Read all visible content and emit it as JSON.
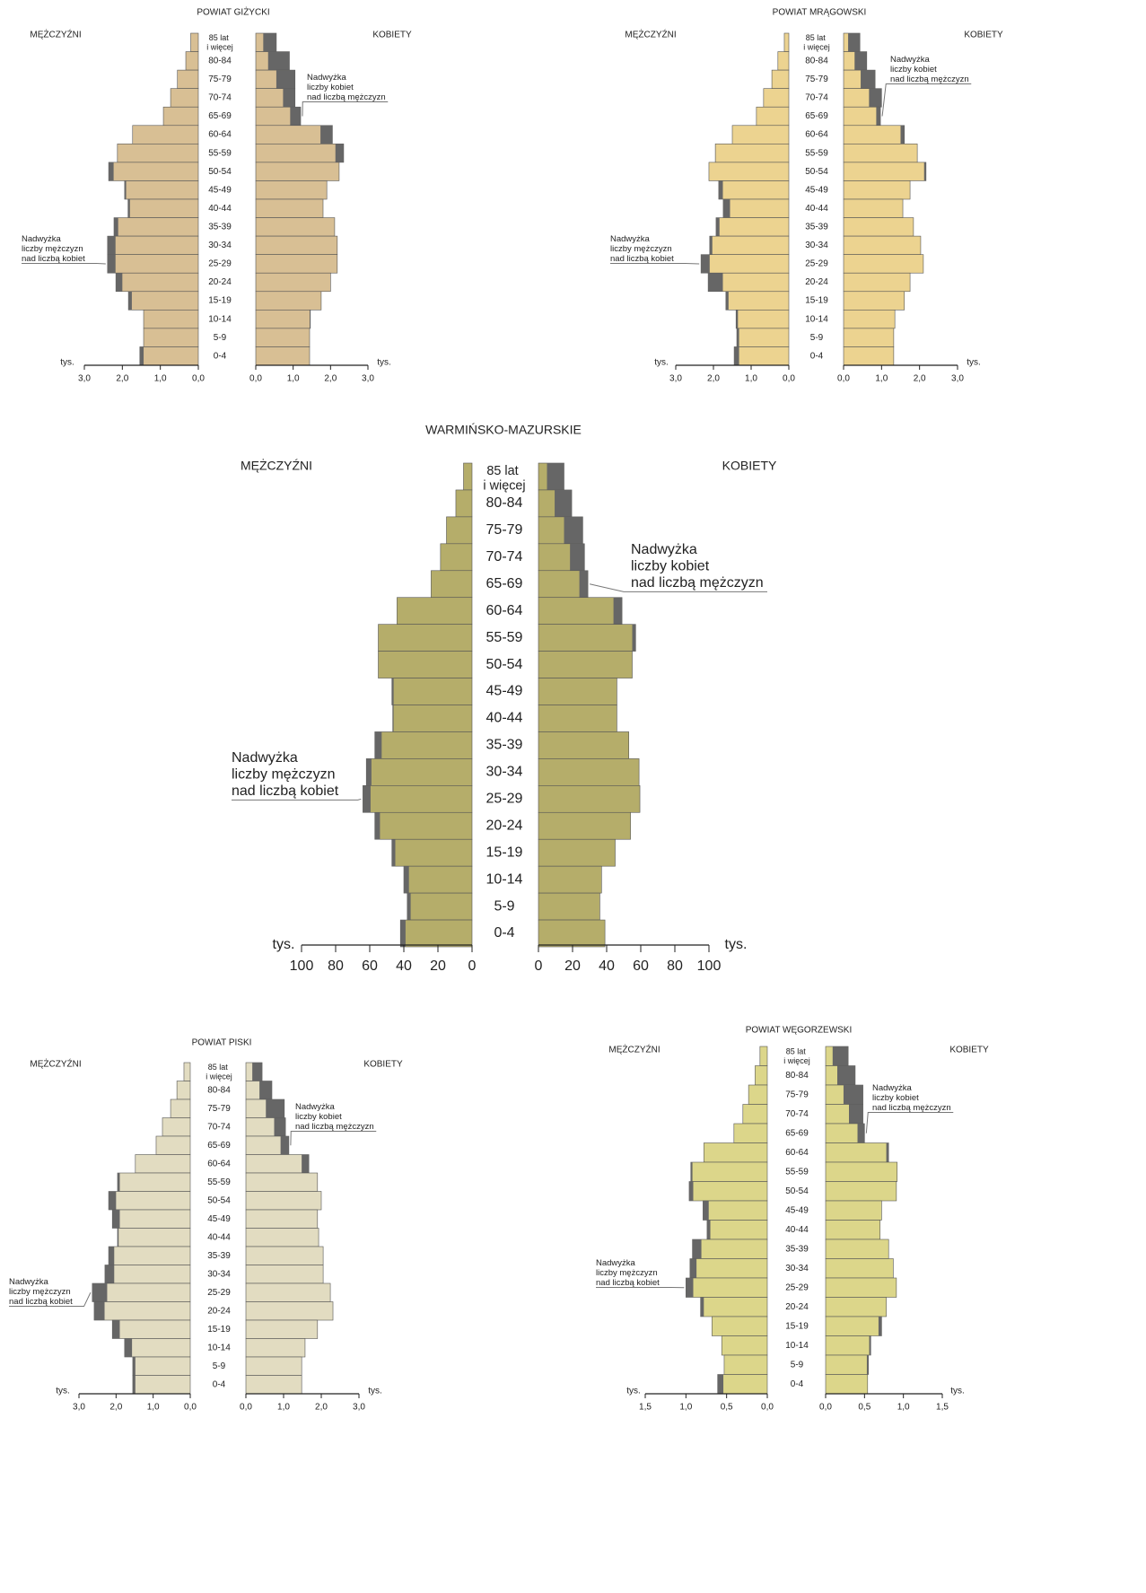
{
  "chart_data": [
    {
      "type": "pyramid",
      "title": "POWIAT GIŻYCKI",
      "x_label": "tys.",
      "categories": [
        "85 lat i więcej",
        "80-84",
        "75-79",
        "70-74",
        "65-69",
        "60-64",
        "55-59",
        "50-54",
        "45-49",
        "40-44",
        "35-39",
        "30-34",
        "25-29",
        "20-24",
        "15-19",
        "10-14",
        "5-9",
        "0-4"
      ],
      "series": [
        {
          "name": "MĘŻCZYŹNI",
          "color": "#d8bf94",
          "values": [
            0.2,
            0.33,
            0.55,
            0.73,
            0.92,
            1.73,
            2.13,
            2.36,
            1.94,
            1.85,
            2.22,
            2.39,
            2.39,
            2.17,
            1.84,
            1.44,
            1.44,
            1.54
          ]
        },
        {
          "name": "KOBIETY",
          "color": "#d8bf94",
          "values": [
            0.55,
            0.9,
            1.05,
            1.05,
            1.2,
            2.05,
            2.35,
            2.23,
            1.9,
            1.8,
            2.11,
            2.18,
            2.18,
            2.0,
            1.75,
            1.46,
            1.44,
            1.44
          ]
        }
      ],
      "excess_color": "#666666",
      "annotations": [
        "Nadwyżka liczby kobiet nad liczbą mężczyzn",
        "Nadwyżka liczby mężczyzn nad liczbą kobiet"
      ],
      "xlim": [
        0,
        3
      ],
      "xticks_left": [
        {
          "value": 3,
          "label": "3,0"
        },
        {
          "value": 2,
          "label": "2,0"
        },
        {
          "value": 1,
          "label": "1,0"
        },
        {
          "value": 0,
          "label": "0,0"
        }
      ],
      "xticks_right": [
        {
          "value": 0,
          "label": "0,0"
        },
        {
          "value": 1,
          "label": "1,0"
        },
        {
          "value": 2,
          "label": "2,0"
        },
        {
          "value": 3,
          "label": "3,0"
        }
      ]
    },
    {
      "type": "pyramid",
      "title": "POWIAT MRĄGOWSKI",
      "x_label": "tys.",
      "categories": [
        "85 lat i więcej",
        "80-84",
        "75-79",
        "70-74",
        "65-69",
        "60-64",
        "55-59",
        "50-54",
        "45-49",
        "40-44",
        "35-39",
        "30-34",
        "25-29",
        "20-24",
        "15-19",
        "10-14",
        "5-9",
        "0-4"
      ],
      "series": [
        {
          "name": "MĘŻCZYŹNI",
          "color": "#ecd390",
          "values": [
            0.12,
            0.29,
            0.45,
            0.67,
            0.86,
            1.5,
            1.95,
            2.12,
            1.86,
            1.74,
            1.93,
            2.1,
            2.33,
            2.14,
            1.67,
            1.4,
            1.38,
            1.45
          ]
        },
        {
          "name": "KOBIETY",
          "color": "#ecd390",
          "values": [
            0.43,
            0.61,
            0.83,
            1.0,
            0.97,
            1.6,
            1.94,
            2.17,
            1.75,
            1.56,
            1.84,
            2.03,
            2.1,
            1.75,
            1.6,
            1.35,
            1.32,
            1.32
          ]
        }
      ],
      "excess_color": "#666666",
      "annotations": [
        "Nadwyżka liczby kobiet nad liczbą mężczyzn",
        "Nadwyżka liczby mężczyzn nad liczbą kobiet"
      ],
      "xlim": [
        0,
        3
      ],
      "xticks_left": [
        {
          "value": 3,
          "label": "3,0"
        },
        {
          "value": 2,
          "label": "2,0"
        },
        {
          "value": 1,
          "label": "1,0"
        },
        {
          "value": 0,
          "label": "0,0"
        }
      ],
      "xticks_right": [
        {
          "value": 0,
          "label": "0,0"
        },
        {
          "value": 1,
          "label": "1,0"
        },
        {
          "value": 2,
          "label": "2,0"
        },
        {
          "value": 3,
          "label": "3,0"
        }
      ]
    },
    {
      "type": "pyramid",
      "title": "WARMIŃSKO-MAZURSKIE",
      "x_label": "tys.",
      "categories": [
        "85 lat i więcej",
        "80-84",
        "75-79",
        "70-74",
        "65-69",
        "60-64",
        "55-59",
        "50-54",
        "45-49",
        "40-44",
        "35-39",
        "30-34",
        "25-29",
        "20-24",
        "15-19",
        "10-14",
        "5-9",
        "0-4"
      ],
      "series": [
        {
          "name": "MĘŻCZYŹNI",
          "color": "#b5ad6a",
          "values": [
            5,
            9.5,
            15,
            18.5,
            24,
            44,
            55,
            55,
            47,
            46.5,
            57,
            62,
            64,
            57,
            47,
            40,
            38,
            42
          ]
        },
        {
          "name": "KOBIETY",
          "color": "#b5ad6a",
          "values": [
            15,
            19.5,
            26,
            27,
            29,
            49,
            57,
            55,
            46,
            46,
            53,
            59,
            59.5,
            54,
            45,
            37,
            36,
            39
          ]
        }
      ],
      "excess_color": "#666666",
      "annotations": [
        "Nadwyżka liczby kobiet nad liczbą mężczyzn",
        "Nadwyżka liczby mężczyzn nad liczbą kobiet"
      ],
      "xlim": [
        0,
        100
      ],
      "xticks_left": [
        100,
        80,
        60,
        40,
        20,
        0
      ],
      "xticks_right": [
        0,
        20,
        40,
        60,
        80,
        100
      ]
    },
    {
      "type": "pyramid",
      "title": "POWIAT PISKI",
      "x_label": "tys.",
      "categories": [
        "85 lat i więcej",
        "80-84",
        "75-79",
        "70-74",
        "65-69",
        "60-64",
        "55-59",
        "50-54",
        "45-49",
        "40-44",
        "35-39",
        "30-34",
        "25-29",
        "20-24",
        "15-19",
        "10-14",
        "5-9",
        "0-4"
      ],
      "series": [
        {
          "name": "MĘŻCZYŹNI",
          "color": "#e2dcc1",
          "values": [
            0.17,
            0.36,
            0.53,
            0.75,
            0.92,
            1.48,
            1.96,
            2.2,
            2.1,
            1.96,
            2.2,
            2.3,
            2.64,
            2.59,
            2.1,
            1.77,
            1.55,
            1.55
          ]
        },
        {
          "name": "KOBIETY",
          "color": "#e2dcc1",
          "values": [
            0.43,
            0.69,
            1.02,
            1.05,
            1.14,
            1.67,
            1.9,
            2.0,
            1.9,
            1.93,
            2.05,
            2.05,
            2.24,
            2.31,
            1.9,
            1.57,
            1.48,
            1.48
          ]
        }
      ],
      "excess_color": "#666666",
      "annotations": [
        "Nadwyżka liczby kobiet nad liczbą mężczyzn",
        "Nadwyżka liczby mężczyzn nad liczbą kobiet"
      ],
      "xlim": [
        0,
        3
      ],
      "xticks_left": [
        {
          "value": 3,
          "label": "3,0"
        },
        {
          "value": 2,
          "label": "2,0"
        },
        {
          "value": 1,
          "label": "1,0"
        },
        {
          "value": 0,
          "label": "0,0"
        }
      ],
      "xticks_right": [
        {
          "value": 0,
          "label": "0,0"
        },
        {
          "value": 1,
          "label": "1,0"
        },
        {
          "value": 2,
          "label": "2,0"
        },
        {
          "value": 3,
          "label": "3,0"
        }
      ]
    },
    {
      "type": "pyramid",
      "title": "POWIAT WĘGORZEWSKI",
      "x_label": "tys.",
      "categories": [
        "85 lat i więcej",
        "80-84",
        "75-79",
        "70-74",
        "65-69",
        "60-64",
        "55-59",
        "50-54",
        "45-49",
        "40-44",
        "35-39",
        "30-34",
        "25-29",
        "20-24",
        "15-19",
        "10-14",
        "5-9",
        "0-4"
      ],
      "series": [
        {
          "name": "MĘŻCZYŹNI",
          "color": "#dcd68a",
          "values": [
            0.09,
            0.15,
            0.23,
            0.3,
            0.41,
            0.78,
            0.94,
            0.96,
            0.79,
            0.74,
            0.92,
            0.95,
            1.0,
            0.82,
            0.68,
            0.56,
            0.53,
            0.61
          ]
        },
        {
          "name": "KOBIETY",
          "color": "#dcd68a",
          "values": [
            0.29,
            0.38,
            0.48,
            0.48,
            0.5,
            0.81,
            0.92,
            0.91,
            0.72,
            0.7,
            0.81,
            0.87,
            0.91,
            0.78,
            0.72,
            0.58,
            0.55,
            0.54
          ]
        }
      ],
      "excess_color": "#666666",
      "annotations": [
        "Nadwyżka liczby kobiet nad liczbą mężczyzn",
        "Nadwyżka liczby mężczyzn nad liczbą kobiet"
      ],
      "xlim": [
        0,
        1.5
      ],
      "xticks_left": [
        {
          "value": 1.5,
          "label": "1,5"
        },
        {
          "value": 1,
          "label": "1,0"
        },
        {
          "value": 0.5,
          "label": "0,5"
        },
        {
          "value": 0,
          "label": "0,0"
        }
      ],
      "xticks_right": [
        {
          "value": 0,
          "label": "0,0"
        },
        {
          "value": 0.5,
          "label": "0,5"
        },
        {
          "value": 1,
          "label": "1,0"
        },
        {
          "value": 1.5,
          "label": "1,5"
        }
      ]
    }
  ]
}
